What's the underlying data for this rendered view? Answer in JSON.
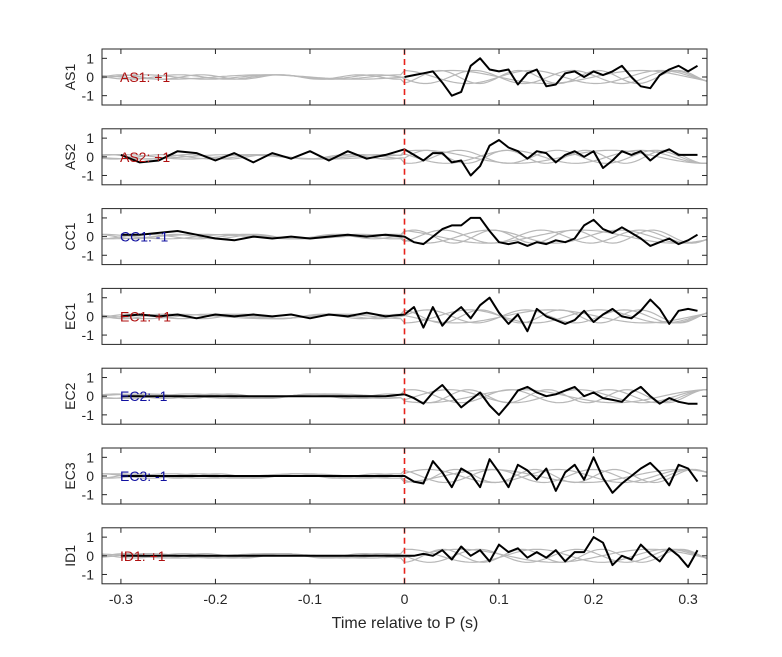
{
  "chart_data": {
    "type": "line",
    "xlabel": "Time relative to P (s)",
    "xlim": [
      -0.32,
      0.32
    ],
    "ylim": [
      -1.5,
      1.5
    ],
    "xticks": [
      -0.3,
      -0.2,
      -0.1,
      0,
      0.1,
      0.2,
      0.3
    ],
    "yticks": [
      -1,
      0,
      1
    ],
    "marker_x": 0,
    "colors": {
      "trace": "#000000",
      "gray": "#b8b8b8",
      "marker": "#e8231c",
      "positive": "#b01010",
      "negative": "#1010a0"
    },
    "panels": [
      {
        "station": "AS1",
        "label": "AS1: +1",
        "polarity": "positive",
        "x": [
          0,
          0.01,
          0.02,
          0.03,
          0.04,
          0.05,
          0.06,
          0.07,
          0.08,
          0.09,
          0.1,
          0.11,
          0.12,
          0.13,
          0.14,
          0.15,
          0.16,
          0.17,
          0.18,
          0.19,
          0.2,
          0.21,
          0.22,
          0.23,
          0.24,
          0.25,
          0.26,
          0.27,
          0.28,
          0.29,
          0.3,
          0.31
        ],
        "values": [
          0.0,
          0.1,
          0.2,
          0.3,
          -0.3,
          -1.0,
          -0.8,
          0.6,
          1.0,
          0.4,
          0.3,
          0.4,
          -0.4,
          0.2,
          0.4,
          -0.5,
          -0.4,
          0.2,
          0.3,
          0.0,
          0.3,
          0.1,
          0.3,
          0.6,
          0.0,
          -0.5,
          -0.6,
          0.1,
          0.4,
          0.6,
          0.3,
          0.6
        ]
      },
      {
        "station": "AS2",
        "label": "AS2: +1",
        "polarity": "positive",
        "x": [
          -0.3,
          -0.28,
          -0.26,
          -0.24,
          -0.22,
          -0.2,
          -0.18,
          -0.16,
          -0.14,
          -0.12,
          -0.1,
          -0.08,
          -0.06,
          -0.04,
          -0.02,
          0,
          0.01,
          0.02,
          0.03,
          0.04,
          0.05,
          0.06,
          0.07,
          0.08,
          0.09,
          0.1,
          0.11,
          0.12,
          0.13,
          0.14,
          0.15,
          0.16,
          0.17,
          0.18,
          0.19,
          0.2,
          0.21,
          0.22,
          0.23,
          0.24,
          0.25,
          0.26,
          0.27,
          0.28,
          0.29,
          0.3,
          0.31
        ],
        "values": [
          0.1,
          -0.3,
          -0.2,
          0.3,
          0.2,
          -0.2,
          0.2,
          -0.3,
          0.2,
          -0.1,
          0.3,
          -0.2,
          0.3,
          -0.1,
          0.1,
          0.4,
          0.1,
          -0.2,
          0.2,
          0.2,
          -0.3,
          -0.2,
          -1.0,
          -0.5,
          0.6,
          0.9,
          0.5,
          0.3,
          -0.1,
          0.3,
          0.2,
          -0.3,
          0.1,
          0.3,
          0.0,
          0.3,
          -0.6,
          -0.2,
          0.3,
          0.1,
          0.3,
          -0.2,
          0.2,
          0.4,
          0.1,
          0.1,
          0.1
        ]
      },
      {
        "station": "CC1",
        "label": "CC1: -1",
        "polarity": "negative",
        "x": [
          -0.3,
          -0.28,
          -0.26,
          -0.24,
          -0.22,
          -0.2,
          -0.18,
          -0.16,
          -0.14,
          -0.12,
          -0.1,
          -0.08,
          -0.06,
          -0.04,
          -0.02,
          0,
          0.01,
          0.02,
          0.03,
          0.04,
          0.05,
          0.06,
          0.07,
          0.08,
          0.09,
          0.1,
          0.11,
          0.12,
          0.13,
          0.14,
          0.15,
          0.16,
          0.17,
          0.18,
          0.19,
          0.2,
          0.21,
          0.22,
          0.23,
          0.24,
          0.25,
          0.26,
          0.27,
          0.28,
          0.29,
          0.3,
          0.31
        ],
        "values": [
          0.1,
          0.1,
          0.2,
          0.3,
          0.1,
          -0.1,
          -0.2,
          0.0,
          -0.1,
          0.0,
          -0.1,
          0.0,
          0.1,
          0.0,
          0.1,
          0.0,
          -0.3,
          -0.4,
          0.0,
          0.4,
          0.6,
          0.6,
          1.0,
          1.0,
          0.3,
          -0.3,
          -0.4,
          -0.3,
          -0.5,
          -0.3,
          -0.4,
          -0.2,
          -0.3,
          -0.1,
          0.6,
          0.9,
          0.4,
          0.2,
          0.5,
          0.2,
          -0.1,
          -0.5,
          -0.3,
          -0.1,
          -0.4,
          -0.2,
          0.1
        ]
      },
      {
        "station": "EC1",
        "label": "EC1: +1",
        "polarity": "positive",
        "x": [
          -0.3,
          -0.28,
          -0.26,
          -0.24,
          -0.22,
          -0.2,
          -0.18,
          -0.16,
          -0.14,
          -0.12,
          -0.1,
          -0.08,
          -0.06,
          -0.04,
          -0.02,
          0,
          0.01,
          0.02,
          0.03,
          0.04,
          0.05,
          0.06,
          0.07,
          0.08,
          0.09,
          0.1,
          0.11,
          0.12,
          0.13,
          0.14,
          0.15,
          0.16,
          0.17,
          0.18,
          0.19,
          0.2,
          0.21,
          0.22,
          0.23,
          0.24,
          0.25,
          0.26,
          0.27,
          0.28,
          0.29,
          0.3,
          0.31
        ],
        "values": [
          0.0,
          0.1,
          0.0,
          0.1,
          -0.1,
          0.1,
          0.0,
          0.1,
          0.0,
          0.1,
          -0.1,
          0.1,
          0.0,
          0.2,
          0.0,
          0.1,
          0.5,
          -0.6,
          0.5,
          -0.5,
          0.1,
          0.5,
          -0.1,
          0.6,
          1.0,
          0.2,
          -0.4,
          0.1,
          -0.8,
          0.4,
          0.0,
          -0.2,
          -0.4,
          -0.2,
          0.3,
          -0.3,
          0.1,
          0.4,
          0.0,
          -0.1,
          0.3,
          0.9,
          0.4,
          -0.4,
          0.3,
          0.4,
          0.3
        ]
      },
      {
        "station": "EC2",
        "label": "EC2: -1",
        "polarity": "negative",
        "x": [
          -0.3,
          -0.2,
          -0.1,
          -0.02,
          0,
          0.01,
          0.02,
          0.03,
          0.04,
          0.05,
          0.06,
          0.07,
          0.08,
          0.09,
          0.1,
          0.11,
          0.12,
          0.13,
          0.14,
          0.15,
          0.16,
          0.17,
          0.18,
          0.19,
          0.2,
          0.21,
          0.22,
          0.23,
          0.24,
          0.25,
          0.26,
          0.27,
          0.28,
          0.29,
          0.3,
          0.31
        ],
        "values": [
          0.0,
          0.0,
          0.0,
          0.0,
          0.1,
          -0.1,
          -0.4,
          0.2,
          0.6,
          0.0,
          -0.6,
          -0.2,
          0.2,
          -0.5,
          -1.0,
          -0.4,
          0.3,
          0.5,
          0.2,
          0.0,
          0.1,
          0.3,
          0.5,
          0.0,
          0.2,
          -0.1,
          -0.2,
          -0.3,
          0.2,
          0.5,
          0.0,
          -0.4,
          -0.1,
          -0.3,
          -0.4,
          -0.4
        ]
      },
      {
        "station": "EC3",
        "label": "EC3: -1",
        "polarity": "negative",
        "x": [
          -0.3,
          -0.2,
          -0.1,
          -0.02,
          0,
          0.01,
          0.02,
          0.03,
          0.04,
          0.05,
          0.06,
          0.07,
          0.08,
          0.09,
          0.1,
          0.11,
          0.12,
          0.13,
          0.14,
          0.15,
          0.16,
          0.17,
          0.18,
          0.19,
          0.2,
          0.21,
          0.22,
          0.23,
          0.24,
          0.25,
          0.26,
          0.27,
          0.28,
          0.29,
          0.3,
          0.31
        ],
        "values": [
          0.0,
          0.0,
          0.0,
          0.0,
          0.0,
          -0.3,
          -0.4,
          0.8,
          0.2,
          -0.6,
          0.4,
          0.1,
          -0.6,
          0.9,
          0.2,
          -0.6,
          0.6,
          0.3,
          -0.2,
          0.4,
          -0.8,
          0.2,
          0.6,
          -0.2,
          1.0,
          -0.1,
          -0.9,
          -0.4,
          0.0,
          0.4,
          0.7,
          0.2,
          -0.5,
          0.6,
          0.4,
          -0.3
        ]
      },
      {
        "station": "ID1",
        "label": "ID1: +1",
        "polarity": "positive",
        "x": [
          -0.3,
          -0.2,
          -0.1,
          -0.02,
          0,
          0.01,
          0.02,
          0.03,
          0.04,
          0.05,
          0.06,
          0.07,
          0.08,
          0.09,
          0.1,
          0.11,
          0.12,
          0.13,
          0.14,
          0.15,
          0.16,
          0.17,
          0.18,
          0.19,
          0.2,
          0.21,
          0.22,
          0.23,
          0.24,
          0.25,
          0.26,
          0.27,
          0.28,
          0.29,
          0.3,
          0.31
        ],
        "values": [
          0.0,
          0.0,
          0.0,
          0.0,
          0.0,
          0.0,
          0.1,
          0.0,
          0.3,
          -0.2,
          0.5,
          0.0,
          0.3,
          -0.3,
          0.6,
          0.2,
          0.4,
          -0.1,
          0.2,
          -0.1,
          0.3,
          -0.3,
          0.2,
          0.2,
          1.0,
          0.7,
          -0.5,
          0.0,
          -0.2,
          0.6,
          0.1,
          -0.3,
          0.4,
          0.0,
          -0.6,
          0.3
        ]
      }
    ]
  }
}
